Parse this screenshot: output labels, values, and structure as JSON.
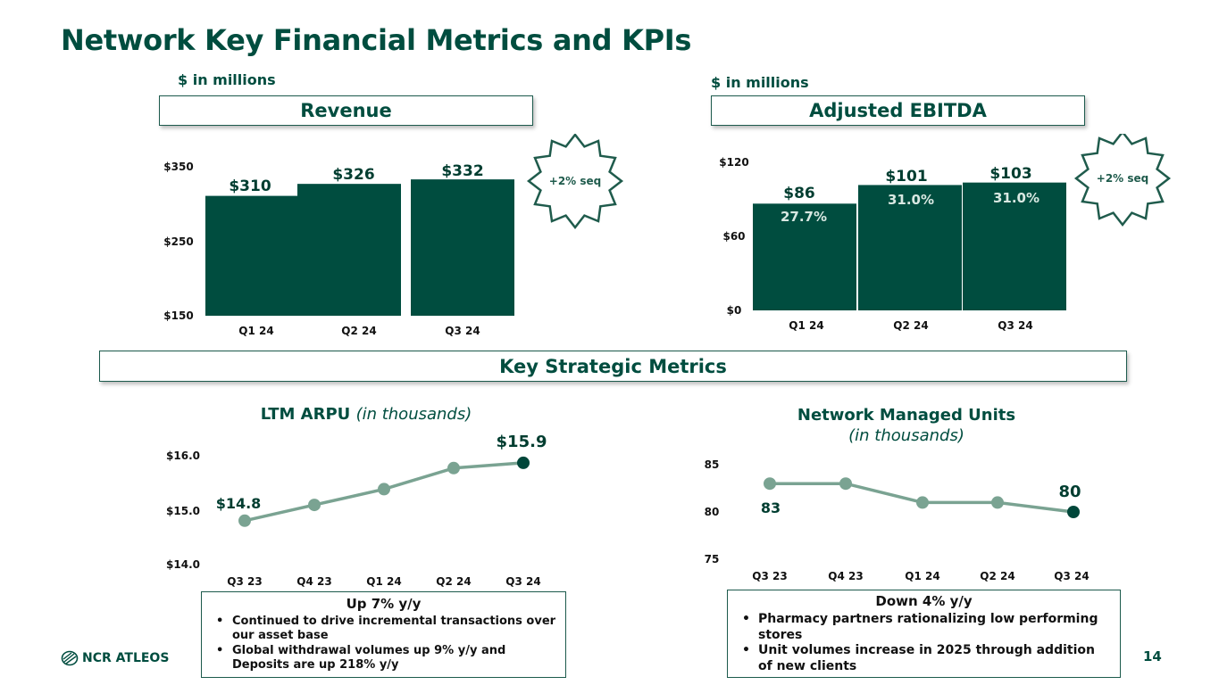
{
  "title": "Network Key Financial Metrics and KPIs",
  "units_left": "$ in millions",
  "units_right": "$ in millions",
  "key_strategic_metrics": "Key Strategic Metrics",
  "page_number": "14",
  "logo_text": "NCR ATLEOS",
  "colors": {
    "dark_green": "#004d3f",
    "line_green": "#7aa392",
    "marker": "#7aa392",
    "last_marker": "#00473a"
  },
  "chart_data": [
    {
      "type": "bar",
      "header": "Revenue",
      "categories": [
        "Q1 24",
        "Q2 24",
        "Q3 24"
      ],
      "values": [
        310,
        326,
        332
      ],
      "value_labels": [
        "$310",
        "$326",
        "$332"
      ],
      "ylim": [
        150,
        350
      ],
      "yticks": [
        150,
        250,
        350
      ],
      "ytick_labels": [
        "$150",
        "$250",
        "$350"
      ],
      "badge": "+2% seq"
    },
    {
      "type": "bar",
      "header": "Adjusted EBITDA",
      "categories": [
        "Q1 24",
        "Q2 24",
        "Q3 24"
      ],
      "values": [
        86,
        101,
        103
      ],
      "value_labels": [
        "$86",
        "$101",
        "$103"
      ],
      "margins": [
        "27.7%",
        "31.0%",
        "31.0%"
      ],
      "ylim": [
        0,
        120
      ],
      "yticks": [
        0,
        60,
        120
      ],
      "ytick_labels": [
        "$0",
        "$60",
        "$120"
      ],
      "badge": "+2% seq"
    },
    {
      "type": "line",
      "title": "LTM ARPU",
      "title_italic": "(in thousands)",
      "categories": [
        "Q3 23",
        "Q4 23",
        "Q1 24",
        "Q2 24",
        "Q3 24"
      ],
      "values": [
        14.8,
        15.1,
        15.4,
        15.8,
        15.9
      ],
      "point_labels": [
        "$14.8",
        "",
        "",
        "",
        "$15.9"
      ],
      "ylim": [
        14.0,
        16.0
      ],
      "yticks": [
        14.0,
        15.0,
        16.0
      ],
      "ytick_labels": [
        "$14.0",
        "$15.0",
        "$16.0"
      ],
      "note_title": "Up 7% y/y",
      "notes": [
        "Continued to drive incremental transactions over our asset base",
        "Global withdrawal volumes up 9% y/y and Deposits are up 218% y/y"
      ]
    },
    {
      "type": "line",
      "title": "Network Managed Units",
      "title_italic": "(in thousands)",
      "categories": [
        "Q3 23",
        "Q4 23",
        "Q1 24",
        "Q2 24",
        "Q3 24"
      ],
      "values": [
        83,
        83,
        81,
        81,
        80
      ],
      "point_labels": [
        "83",
        "",
        "",
        "",
        "80"
      ],
      "ylim": [
        75,
        85
      ],
      "yticks": [
        75,
        80,
        85
      ],
      "ytick_labels": [
        "75",
        "80",
        "85"
      ],
      "note_title": "Down 4% y/y",
      "notes": [
        "Pharmacy partners rationalizing low performing stores",
        "Unit volumes increase in 2025 through addition of new clients"
      ]
    }
  ]
}
